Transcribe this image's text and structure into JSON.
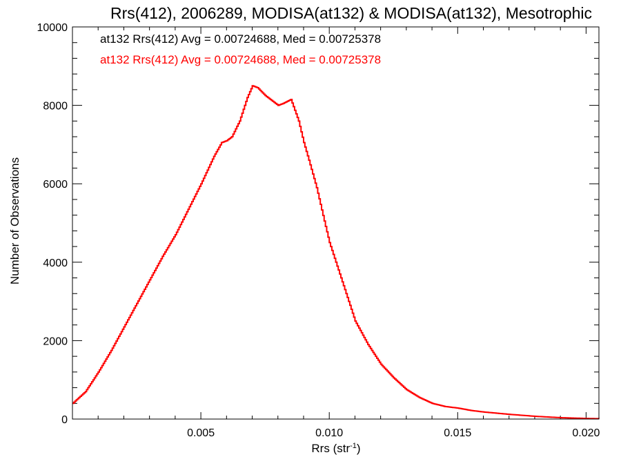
{
  "chart_data": {
    "type": "line",
    "title": "Rrs(412), 2006289, MODISA(at132) & MODISA(at132), Mesotrophic",
    "xlabel_main": "Rrs (str",
    "xlabel_sup": "-1",
    "xlabel_end": ")",
    "ylabel": "Number of Observations",
    "xlim": [
      0.0,
      0.0205
    ],
    "ylim": [
      0,
      10000
    ],
    "x_ticks": [
      {
        "value": 0.005,
        "label": "0.005"
      },
      {
        "value": 0.01,
        "label": "0.010"
      },
      {
        "value": 0.015,
        "label": "0.015"
      },
      {
        "value": 0.02,
        "label": "0.020"
      }
    ],
    "y_ticks": [
      {
        "value": 0,
        "label": "0"
      },
      {
        "value": 2000,
        "label": "2000"
      },
      {
        "value": 4000,
        "label": "4000"
      },
      {
        "value": 6000,
        "label": "6000"
      },
      {
        "value": 8000,
        "label": "8000"
      },
      {
        "value": 10000,
        "label": "10000"
      }
    ],
    "annotations": [
      {
        "text": "at132 Rrs(412) Avg = 0.00724688, Med = 0.00725378",
        "color": "#000000"
      },
      {
        "text": "at132 Rrs(412) Avg = 0.00724688, Med = 0.00725378",
        "color": "#ff0000"
      }
    ],
    "series": [
      {
        "color": "#ff0000",
        "x": [
          0.0,
          0.0005,
          0.001,
          0.0015,
          0.002,
          0.0025,
          0.003,
          0.0035,
          0.004,
          0.0045,
          0.005,
          0.0055,
          0.0058,
          0.006,
          0.0062,
          0.0065,
          0.0068,
          0.007,
          0.0072,
          0.0075,
          0.0078,
          0.008,
          0.0082,
          0.0085,
          0.0088,
          0.009,
          0.0092,
          0.0095,
          0.0098,
          0.01,
          0.0105,
          0.011,
          0.0115,
          0.012,
          0.0125,
          0.013,
          0.0135,
          0.014,
          0.0145,
          0.015,
          0.0155,
          0.016,
          0.017,
          0.018,
          0.019,
          0.02,
          0.0205
        ],
        "y": [
          400,
          700,
          1200,
          1750,
          2350,
          2950,
          3550,
          4150,
          4700,
          5350,
          6000,
          6700,
          7050,
          7100,
          7200,
          7600,
          8200,
          8500,
          8450,
          8250,
          8100,
          8000,
          8050,
          8150,
          7600,
          7050,
          6600,
          5900,
          5050,
          4500,
          3500,
          2500,
          1900,
          1400,
          1050,
          750,
          550,
          400,
          320,
          280,
          220,
          180,
          120,
          70,
          35,
          15,
          10
        ]
      }
    ]
  }
}
